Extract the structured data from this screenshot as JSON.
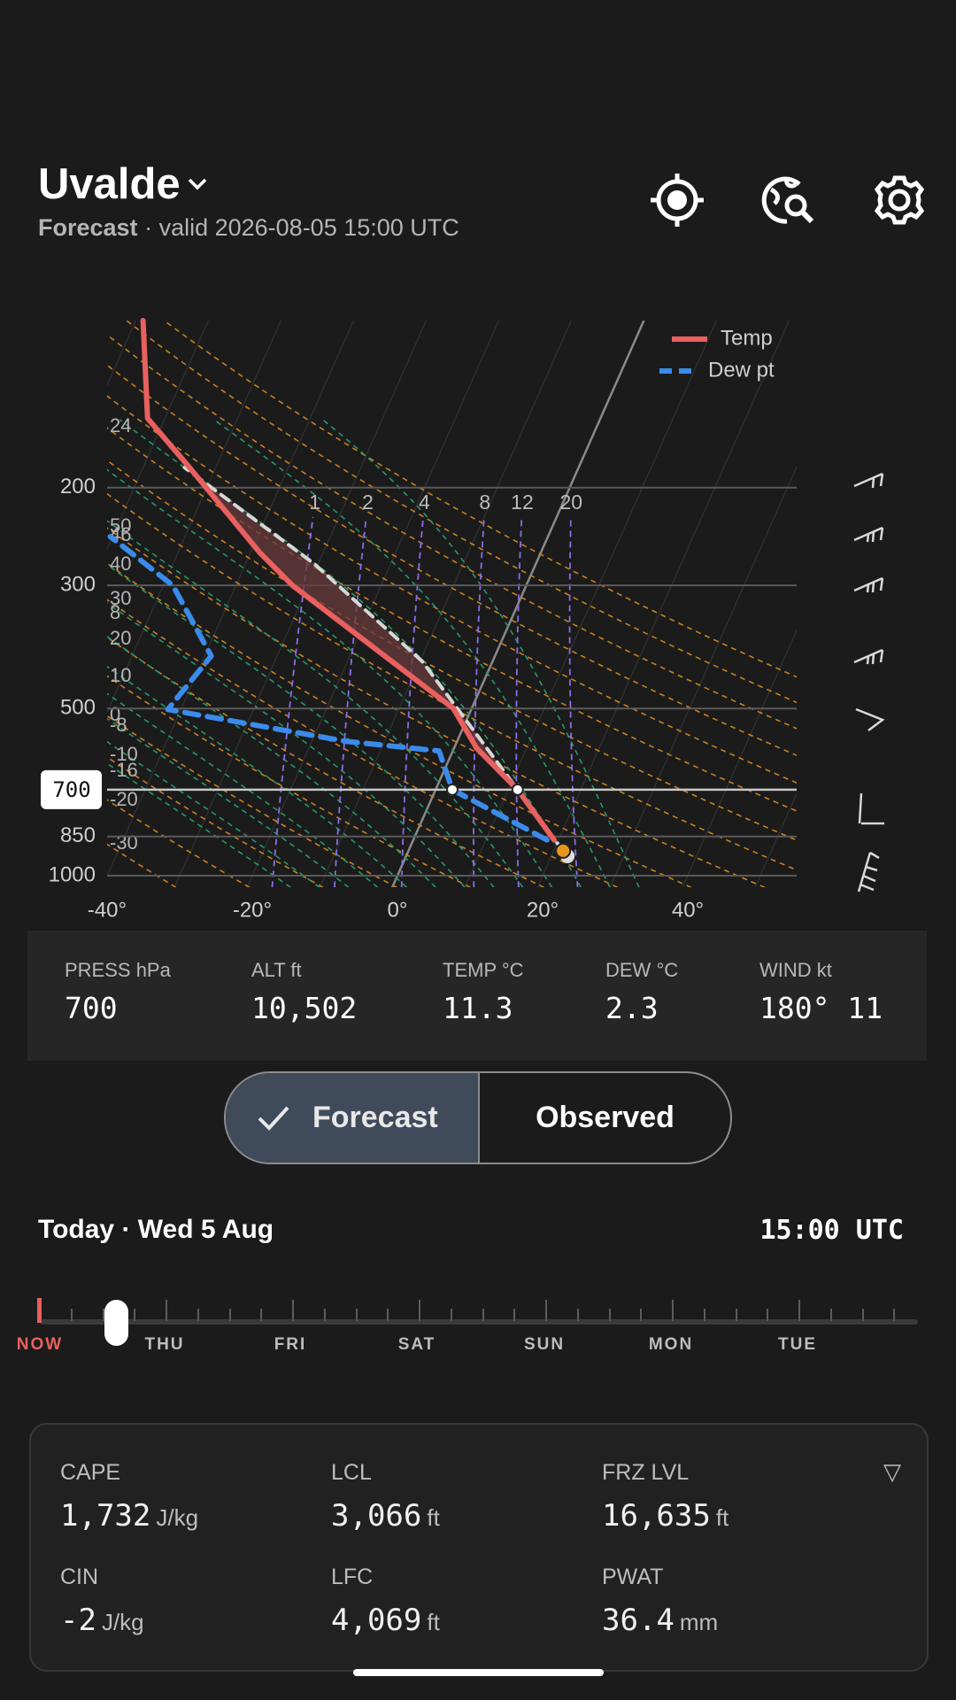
{
  "header": {
    "location": "Uvalde",
    "mode": "Forecast",
    "valid": "· valid 2026-08-05 15:00 UTC"
  },
  "chart_data": {
    "type": "skewt",
    "log_scale": true,
    "ylim": [
      1000,
      100
    ],
    "yticks": [
      1000,
      850,
      700,
      500,
      300,
      200
    ],
    "xlim": [
      -40,
      55
    ],
    "xticks": [
      {
        "value": -40,
        "label": "-40°"
      },
      {
        "value": -20,
        "label": "-20°"
      },
      {
        "value": 0,
        "label": "0°"
      },
      {
        "value": 20,
        "label": "20°"
      },
      {
        "value": 40,
        "label": "40°"
      }
    ],
    "series": [
      {
        "name": "Temp",
        "color": "#e8605f",
        "dashed": false,
        "pressure": [
          862,
          700,
          589,
          500,
          300,
          262,
          184,
          150,
          100
        ],
        "values": [
          19.4,
          11.3,
          3.1,
          -2.5,
          -32.2,
          -38.7,
          -53.6,
          -62.4,
          -69.0
        ]
      },
      {
        "name": "Dew pt",
        "color": "#3b8beb",
        "dashed": true,
        "pressure": [
          862,
          700,
          596,
          573,
          502,
          402,
          300,
          245
        ],
        "values": [
          18.4,
          2.3,
          -1.9,
          -15.2,
          -41.8,
          -39.1,
          -48.7,
          -60.3
        ]
      }
    ],
    "parcel": {
      "color": "#d6d6d6",
      "pressure": [
        902,
        700,
        411,
        274,
        184
      ],
      "values": [
        21.3,
        11.3,
        -9.7,
        -30.6,
        -54.3
      ]
    },
    "mixing_ratios": [
      1,
      2,
      4,
      8,
      12,
      20
    ],
    "line_labels": [
      "24",
      "50",
      "46",
      "40",
      "30",
      "8",
      "20",
      "10",
      "0",
      "-8",
      "-10",
      "-16",
      "-20",
      "-30"
    ]
  },
  "readout": [
    {
      "label": "PRESS hPa",
      "value": "700"
    },
    {
      "label": "ALT ft",
      "value": "10,502"
    },
    {
      "label": "TEMP °C",
      "value": "11.3"
    },
    {
      "label": "DEW °C",
      "value": "2.3"
    },
    {
      "label": "WIND kt",
      "value": "180° 11"
    }
  ],
  "toggle": {
    "options": [
      "Forecast",
      "Observed"
    ]
  },
  "date_row": {
    "day": "Today · Wed 5 Aug",
    "time": "15:00 UTC"
  },
  "timeline": {
    "labels": [
      "NOW",
      "THU",
      "FRI",
      "SAT",
      "SUN",
      "MON",
      "TUE"
    ]
  },
  "stats": [
    {
      "label": "CAPE",
      "value": "1,732",
      "unit": "J/kg"
    },
    {
      "label": "LCL",
      "value": "3,066",
      "unit": "ft"
    },
    {
      "label": "FRZ LVL",
      "value": "16,635",
      "unit": "ft"
    },
    {
      "label": "CIN",
      "value": "-2",
      "unit": "J/kg"
    },
    {
      "label": "LFC",
      "value": "4,069",
      "unit": "ft"
    },
    {
      "label": "PWAT",
      "value": "36.4",
      "unit": "mm"
    }
  ]
}
